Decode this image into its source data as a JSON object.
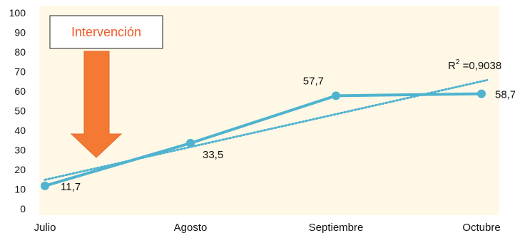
{
  "chart_data": {
    "type": "line",
    "title": "",
    "xlabel": "",
    "ylabel": "",
    "ylim": [
      0,
      100
    ],
    "y_ticks": [
      "0",
      "10",
      "20",
      "30",
      "40",
      "50",
      "60",
      "70",
      "80",
      "90",
      "100"
    ],
    "categories": [
      "Julio",
      "Agosto",
      "Septiembre",
      "Octubre"
    ],
    "series": [
      {
        "values": [
          11.7,
          33.5,
          57.7,
          58.7
        ],
        "data_labels": [
          "11,7",
          "33,5",
          "57,7",
          "58,7"
        ],
        "color": "#4fb3cf"
      }
    ],
    "trendline": {
      "style": "dotted",
      "color": "#4fb3cf",
      "r2_prefix": "R",
      "r2_sup": "2",
      "r2_value": " =0,9038"
    },
    "annotation": {
      "text": "Intervención",
      "text_color": "#f05a28",
      "arrow_color": "#f47a34",
      "arrow_outline": "#e2672a"
    },
    "grid": false,
    "background": "#fff8e6"
  }
}
